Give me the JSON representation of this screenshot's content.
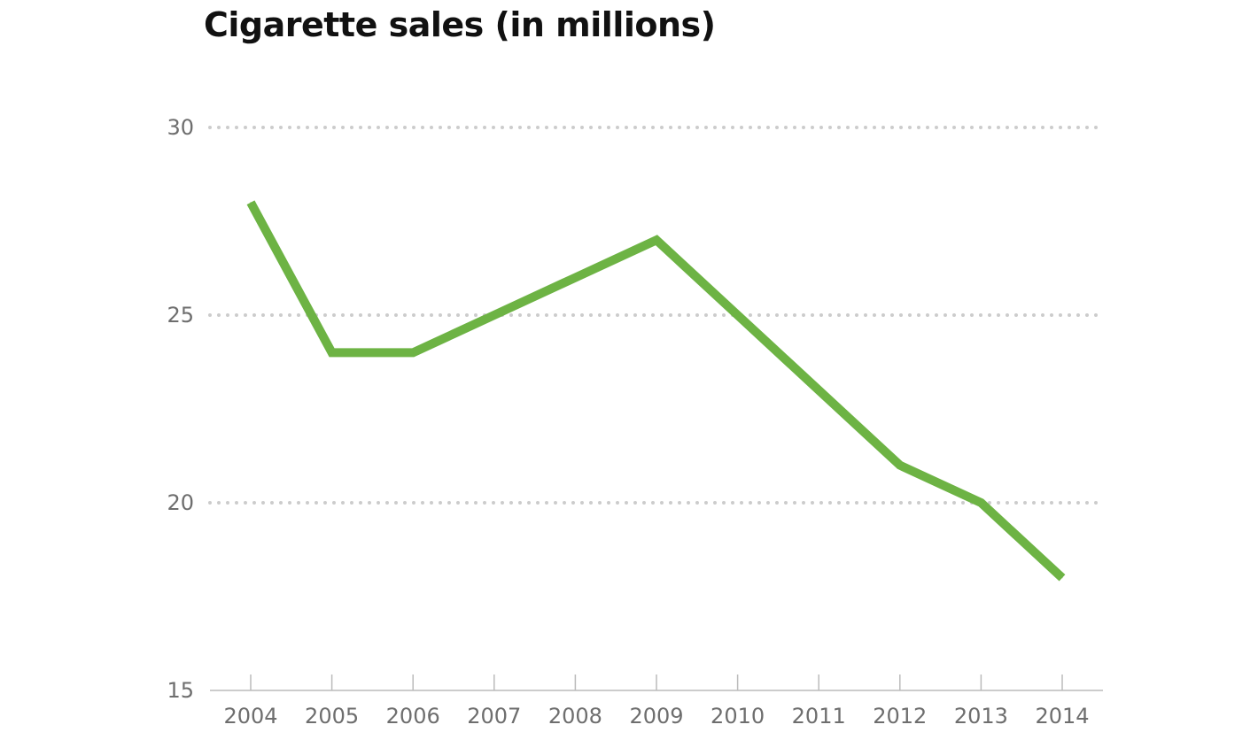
{
  "chart_data": {
    "type": "line",
    "title": "Cigarette sales (in millions)",
    "xlabel": "",
    "ylabel": "",
    "x": [
      "2004",
      "2005",
      "2006",
      "2007",
      "2008",
      "2009",
      "2010",
      "2011",
      "2012",
      "2013",
      "2014"
    ],
    "series": [
      {
        "values": [
          28,
          24,
          24,
          25,
          26,
          27,
          25,
          23,
          21,
          20,
          18
        ]
      }
    ],
    "ylim": [
      15,
      30
    ],
    "yticks": [
      15,
      20,
      25,
      30
    ],
    "yticks_labels": [
      "15",
      "20",
      "25",
      "30"
    ],
    "grid": "horizontal dotted",
    "line_color": "#6db344",
    "grid_color": "#cccccc",
    "axis_color": "#bbbbbb",
    "tick_label_color": "#6e6e6e"
  }
}
